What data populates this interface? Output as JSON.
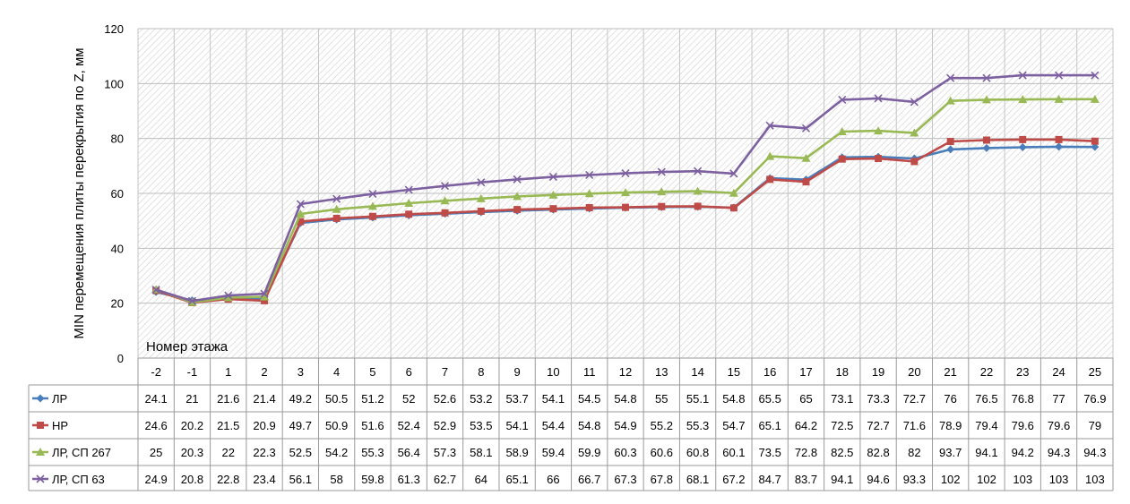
{
  "chart_data": {
    "type": "line",
    "title": "",
    "xlabel": "Номер этажа",
    "ylabel": "MIN перемещения плиты перекрытия по Z, мм",
    "ylim": [
      0,
      120
    ],
    "yticks": [
      "0",
      "20",
      "40",
      "60",
      "80",
      "100",
      "120"
    ],
    "grid": true,
    "legend": "data-table",
    "categories": [
      "-2",
      "-1",
      "1",
      "2",
      "3",
      "4",
      "5",
      "6",
      "7",
      "8",
      "9",
      "10",
      "11",
      "12",
      "13",
      "14",
      "15",
      "16",
      "17",
      "18",
      "19",
      "20",
      "21",
      "22",
      "23",
      "24",
      "25"
    ],
    "series": [
      {
        "name": "ЛР",
        "color": "#4a7ebb",
        "marker": "diamond",
        "values": [
          24.1,
          21,
          21.6,
          21.4,
          49.2,
          50.5,
          51.2,
          52,
          52.6,
          53.2,
          53.7,
          54.1,
          54.5,
          54.8,
          55,
          55.1,
          54.8,
          65.5,
          65,
          73.1,
          73.3,
          72.7,
          76,
          76.5,
          76.8,
          77,
          76.9
        ],
        "labels": [
          "24.1",
          "21",
          "21.6",
          "21.4",
          "49.2",
          "50.5",
          "51.2",
          "52",
          "52.6",
          "53.2",
          "53.7",
          "54.1",
          "54.5",
          "54.8",
          "55",
          "55.1",
          "54.8",
          "65.5",
          "65",
          "73.1",
          "73.3",
          "72.7",
          "76",
          "76.5",
          "76.8",
          "77",
          "76.9"
        ]
      },
      {
        "name": "НР",
        "color": "#be4b48",
        "marker": "square",
        "values": [
          24.6,
          20.2,
          21.5,
          20.9,
          49.7,
          50.9,
          51.6,
          52.4,
          52.9,
          53.5,
          54.1,
          54.4,
          54.8,
          54.9,
          55.2,
          55.3,
          54.7,
          65.1,
          64.2,
          72.5,
          72.7,
          71.6,
          78.9,
          79.4,
          79.6,
          79.6,
          79
        ],
        "labels": [
          "24.6",
          "20.2",
          "21.5",
          "20.9",
          "49.7",
          "50.9",
          "51.6",
          "52.4",
          "52.9",
          "53.5",
          "54.1",
          "54.4",
          "54.8",
          "54.9",
          "55.2",
          "55.3",
          "54.7",
          "65.1",
          "64.2",
          "72.5",
          "72.7",
          "71.6",
          "78.9",
          "79.4",
          "79.6",
          "79.6",
          "79"
        ]
      },
      {
        "name": "ЛР, СП 267",
        "color": "#98b954",
        "marker": "triangle",
        "values": [
          25,
          20.3,
          22,
          22.3,
          52.5,
          54.2,
          55.3,
          56.4,
          57.3,
          58.1,
          58.9,
          59.4,
          59.9,
          60.3,
          60.6,
          60.8,
          60.1,
          73.5,
          72.8,
          82.5,
          82.8,
          82,
          93.7,
          94.1,
          94.2,
          94.3,
          94.3
        ],
        "labels": [
          "25",
          "20.3",
          "22",
          "22.3",
          "52.5",
          "54.2",
          "55.3",
          "56.4",
          "57.3",
          "58.1",
          "58.9",
          "59.4",
          "59.9",
          "60.3",
          "60.6",
          "60.8",
          "60.1",
          "73.5",
          "72.8",
          "82.5",
          "82.8",
          "82",
          "93.7",
          "94.1",
          "94.2",
          "94.3",
          "94.3"
        ]
      },
      {
        "name": "ЛР, СП 63",
        "color": "#7d60a0",
        "marker": "x",
        "values": [
          24.9,
          20.8,
          22.8,
          23.4,
          56.1,
          58,
          59.8,
          61.3,
          62.7,
          64,
          65.1,
          66,
          66.7,
          67.3,
          67.8,
          68.1,
          67.2,
          84.7,
          83.7,
          94.1,
          94.6,
          93.3,
          102,
          102,
          103,
          103,
          103
        ],
        "labels": [
          "24.9",
          "20.8",
          "22.8",
          "23.4",
          "56.1",
          "58",
          "59.8",
          "61.3",
          "62.7",
          "64",
          "65.1",
          "66",
          "66.7",
          "67.3",
          "67.8",
          "68.1",
          "67.2",
          "84.7",
          "83.7",
          "94.1",
          "94.6",
          "93.3",
          "102",
          "102",
          "103",
          "103",
          "103"
        ]
      }
    ]
  }
}
